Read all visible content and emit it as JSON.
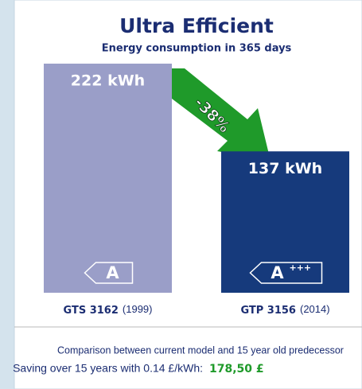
{
  "chart_data": {
    "type": "bar",
    "title": "Ultra Efficient",
    "subtitle": "Energy consumption in 365 days",
    "categories": [
      "GTS 3162",
      "GTP 3156"
    ],
    "category_years": [
      "(1999)",
      "(2014)"
    ],
    "values": [
      222,
      137
    ],
    "value_labels": [
      "222 kWh",
      "137 kWh"
    ],
    "colors": [
      "#9a9ec8",
      "#163a7c"
    ],
    "energy_labels": [
      {
        "letter": "A"
      },
      {
        "letter": "A",
        "plus": "+++"
      }
    ],
    "annotation": "-38%",
    "annotation_color": "#1f9a2a",
    "footer_note": "Comparison between current model and 15 year old predecessor",
    "footer_saving": "Saving over 15 years with 0.14 £/kWh:",
    "footer_amount": "178,50 £"
  }
}
